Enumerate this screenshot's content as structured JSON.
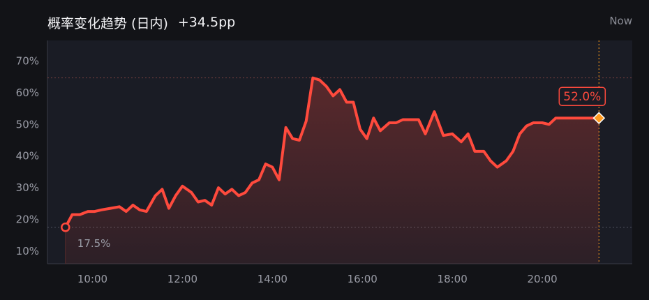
{
  "header": {
    "title": "概率变化趋势 (日内)",
    "change": "+34.5pp",
    "now_label": "Now"
  },
  "colors": {
    "line": "#ff4a3d",
    "end_marker": "#ff9a1f",
    "now_line": "#e8901e",
    "panel": "#1a1c25",
    "background": "#121317"
  },
  "chart_data": {
    "type": "area",
    "y_ticks": [
      {
        "value": 10,
        "label": "10%"
      },
      {
        "value": 20,
        "label": "20%"
      },
      {
        "value": 30,
        "label": "30%"
      },
      {
        "value": 40,
        "label": "40%"
      },
      {
        "value": 50,
        "label": "50%"
      },
      {
        "value": 60,
        "label": "60%"
      },
      {
        "value": 70,
        "label": "70%"
      }
    ],
    "x_ticks": [
      {
        "value": 10.0,
        "label": "10:00"
      },
      {
        "value": 12.0,
        "label": "12:00"
      },
      {
        "value": 14.0,
        "label": "14:00"
      },
      {
        "value": 16.0,
        "label": "16:00"
      },
      {
        "value": 18.0,
        "label": "18:00"
      },
      {
        "value": 20.0,
        "label": "20:00"
      }
    ],
    "xlim": [
      9.0,
      22.0
    ],
    "ylim": [
      6.0,
      76.5
    ],
    "grid": false,
    "start": {
      "x": 9.4,
      "y": 17.5,
      "label": "17.5%"
    },
    "end": {
      "x": 21.26,
      "y": 52.0,
      "label": "52.0%"
    },
    "high_reference": 64.7,
    "low_reference": 17.5,
    "x": [
      9.4,
      9.55,
      9.72,
      9.9,
      10.05,
      10.2,
      10.4,
      10.6,
      10.75,
      10.9,
      11.05,
      11.2,
      11.4,
      11.55,
      11.7,
      11.85,
      12.0,
      12.2,
      12.35,
      12.5,
      12.65,
      12.8,
      12.95,
      13.1,
      13.25,
      13.4,
      13.55,
      13.7,
      13.85,
      14.0,
      14.15,
      14.3,
      14.45,
      14.6,
      14.75,
      14.9,
      15.05,
      15.2,
      15.35,
      15.5,
      15.65,
      15.8,
      15.95,
      16.1,
      16.25,
      16.4,
      16.6,
      16.75,
      16.9,
      17.05,
      17.25,
      17.4,
      17.6,
      17.8,
      18.0,
      18.2,
      18.35,
      18.5,
      18.7,
      18.85,
      19.0,
      19.2,
      19.35,
      19.5,
      19.65,
      19.8,
      20.0,
      20.15,
      20.3,
      20.45,
      20.6,
      20.75,
      20.9,
      21.1,
      21.26
    ],
    "y": [
      17.5,
      21.5,
      21.5,
      22.5,
      22.5,
      23.0,
      23.5,
      24.0,
      22.5,
      24.5,
      23.0,
      22.5,
      27.5,
      29.5,
      23.5,
      27.5,
      30.5,
      28.5,
      25.5,
      26.0,
      24.5,
      30.0,
      28.0,
      29.5,
      27.5,
      28.5,
      31.5,
      32.5,
      37.5,
      36.5,
      32.5,
      49.0,
      45.5,
      45.0,
      51.0,
      64.7,
      64.0,
      62.0,
      59.0,
      61.0,
      57.0,
      57.0,
      48.5,
      45.5,
      52.0,
      48.0,
      50.5,
      50.5,
      51.5,
      51.5,
      51.5,
      47.0,
      54.0,
      46.5,
      47.0,
      44.5,
      47.0,
      41.5,
      41.5,
      38.5,
      36.5,
      38.5,
      41.5,
      47.0,
      49.5,
      50.5,
      50.5,
      50.0,
      52.0,
      52.0,
      52.0,
      52.0,
      52.0,
      52.0,
      52.0
    ]
  }
}
